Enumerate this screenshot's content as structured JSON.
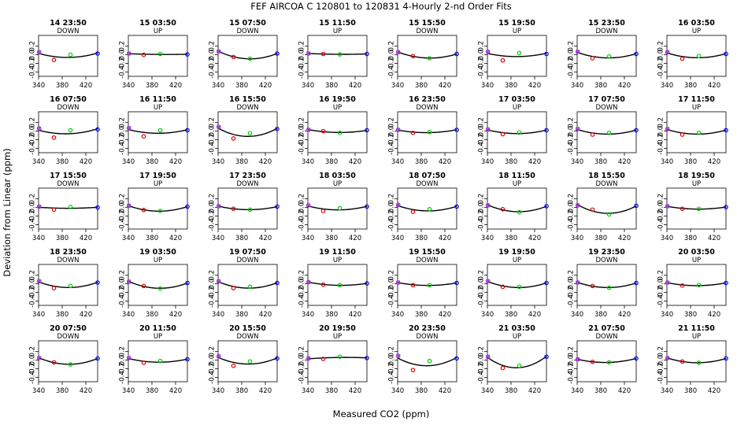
{
  "chart_data": {
    "type": "scatter",
    "title": "FEF   AIRCOA C   120801 to 120831   4-Hourly 2-nd Order Fits",
    "xlabel": "Measured CO2 (ppm)",
    "ylabel": "Deviation from Linear (ppm)",
    "xlim": [
      340,
      440
    ],
    "ylim": [
      -0.5,
      0.45
    ],
    "xticks": [
      "340",
      "380",
      "420"
    ],
    "yticks": [
      "0.2",
      "0.0",
      "-0.2",
      "-0.4"
    ],
    "yticks_values": [
      0.2,
      0.0,
      -0.2,
      -0.4
    ],
    "xticks_values": [
      340,
      380,
      420
    ],
    "x_standards": [
      341,
      366,
      394,
      440
    ],
    "colors": {
      "std1": "#9933cc",
      "std2": "#dd0000",
      "std3": "#00cc00",
      "std4": "#0000ff",
      "fit": "#000000"
    },
    "panels": [
      {
        "title": "14 23:50",
        "dir": "DOWN",
        "y": [
          0.06,
          -0.12,
          0.0,
          0.03
        ]
      },
      {
        "title": "15 03:50",
        "dir": "UP",
        "y": [
          0.03,
          0.0,
          0.02,
          0.01
        ]
      },
      {
        "title": "15 07:50",
        "dir": "DOWN",
        "y": [
          0.08,
          -0.05,
          -0.09,
          0.03
        ]
      },
      {
        "title": "15 11:50",
        "dir": "UP",
        "y": [
          0.03,
          0.02,
          0.01,
          0.02
        ]
      },
      {
        "title": "15 15:50",
        "dir": "DOWN",
        "y": [
          0.06,
          -0.03,
          -0.08,
          0.02
        ]
      },
      {
        "title": "15 19:50",
        "dir": "UP",
        "y": [
          0.07,
          -0.13,
          0.04,
          0.02
        ]
      },
      {
        "title": "15 23:50",
        "dir": "DOWN",
        "y": [
          0.07,
          -0.08,
          -0.04,
          0.02
        ]
      },
      {
        "title": "16 03:50",
        "dir": "UP",
        "y": [
          0.06,
          -0.09,
          -0.03,
          0.02
        ]
      },
      {
        "title": "16 07:50",
        "dir": "DOWN",
        "y": [
          0.06,
          -0.15,
          0.02,
          0.04
        ]
      },
      {
        "title": "16 11:50",
        "dir": "UP",
        "y": [
          0.07,
          -0.12,
          0.02,
          0.02
        ]
      },
      {
        "title": "16 15:50",
        "dir": "DOWN",
        "y": [
          0.1,
          -0.17,
          -0.05,
          0.05
        ]
      },
      {
        "title": "16 19:50",
        "dir": "UP",
        "y": [
          0.03,
          0.0,
          -0.04,
          0.02
        ]
      },
      {
        "title": "16 23:50",
        "dir": "DOWN",
        "y": [
          0.03,
          -0.04,
          -0.02,
          0.03
        ]
      },
      {
        "title": "17 03:50",
        "dir": "UP",
        "y": [
          0.04,
          -0.07,
          -0.03,
          0.02
        ]
      },
      {
        "title": "17 07:50",
        "dir": "DOWN",
        "y": [
          0.05,
          -0.08,
          -0.04,
          0.02
        ]
      },
      {
        "title": "17 11:50",
        "dir": "UP",
        "y": [
          0.05,
          -0.08,
          -0.04,
          0.02
        ]
      },
      {
        "title": "17 15:50",
        "dir": "DOWN",
        "y": [
          0.02,
          -0.05,
          0.01,
          0.0
        ]
      },
      {
        "title": "17 19:50",
        "dir": "UP",
        "y": [
          0.04,
          -0.06,
          -0.08,
          0.02
        ]
      },
      {
        "title": "17 23:50",
        "dir": "DOWN",
        "y": [
          0.03,
          -0.03,
          -0.05,
          0.02
        ]
      },
      {
        "title": "18 03:50",
        "dir": "UP",
        "y": [
          0.05,
          -0.08,
          -0.02,
          0.02
        ]
      },
      {
        "title": "18 07:50",
        "dir": "DOWN",
        "y": [
          0.06,
          -0.1,
          -0.04,
          0.02
        ]
      },
      {
        "title": "18 11:50",
        "dir": "UP",
        "y": [
          0.05,
          -0.04,
          -0.11,
          0.03
        ]
      },
      {
        "title": "18 15:50",
        "dir": "DOWN",
        "y": [
          0.05,
          -0.05,
          -0.16,
          0.04
        ]
      },
      {
        "title": "18 19:50",
        "dir": "UP",
        "y": [
          0.03,
          -0.03,
          -0.03,
          0.01
        ]
      },
      {
        "title": "18 23:50",
        "dir": "DOWN",
        "y": [
          0.06,
          -0.1,
          -0.05,
          0.03
        ]
      },
      {
        "title": "19 03:50",
        "dir": "UP",
        "y": [
          0.05,
          -0.05,
          -0.11,
          0.02
        ]
      },
      {
        "title": "19 07:50",
        "dir": "DOWN",
        "y": [
          0.06,
          -0.1,
          -0.07,
          0.02
        ]
      },
      {
        "title": "19 11:50",
        "dir": "UP",
        "y": [
          0.04,
          -0.02,
          -0.03,
          0.01
        ]
      },
      {
        "title": "19 15:50",
        "dir": "DOWN",
        "y": [
          0.03,
          -0.03,
          -0.03,
          0.02
        ]
      },
      {
        "title": "19 19:50",
        "dir": "UP",
        "y": [
          0.06,
          -0.07,
          -0.07,
          0.02
        ]
      },
      {
        "title": "19 23:50",
        "dir": "DOWN",
        "y": [
          0.03,
          -0.05,
          -0.09,
          0.02
        ]
      },
      {
        "title": "20 03:50",
        "dir": "UP",
        "y": [
          0.03,
          -0.04,
          -0.03,
          0.02
        ]
      },
      {
        "title": "20 07:50",
        "dir": "DOWN",
        "y": [
          0.05,
          -0.05,
          -0.1,
          0.04
        ]
      },
      {
        "title": "20 11:50",
        "dir": "UP",
        "y": [
          0.05,
          -0.06,
          -0.02,
          0.02
        ]
      },
      {
        "title": "20 15:50",
        "dir": "DOWN",
        "y": [
          0.09,
          -0.13,
          -0.03,
          0.04
        ]
      },
      {
        "title": "20 19:50",
        "dir": "UP",
        "y": [
          0.04,
          0.03,
          0.08,
          0.05
        ]
      },
      {
        "title": "20 23:50",
        "dir": "DOWN",
        "y": [
          0.1,
          -0.23,
          -0.02,
          0.04
        ]
      },
      {
        "title": "21 03:50",
        "dir": "UP",
        "y": [
          0.08,
          -0.18,
          -0.13,
          0.08
        ]
      },
      {
        "title": "21 07:50",
        "dir": "DOWN",
        "y": [
          0.02,
          -0.04,
          -0.05,
          0.04
        ]
      },
      {
        "title": "21 11:50",
        "dir": "UP",
        "y": [
          0.05,
          -0.03,
          -0.06,
          0.04
        ]
      }
    ]
  }
}
